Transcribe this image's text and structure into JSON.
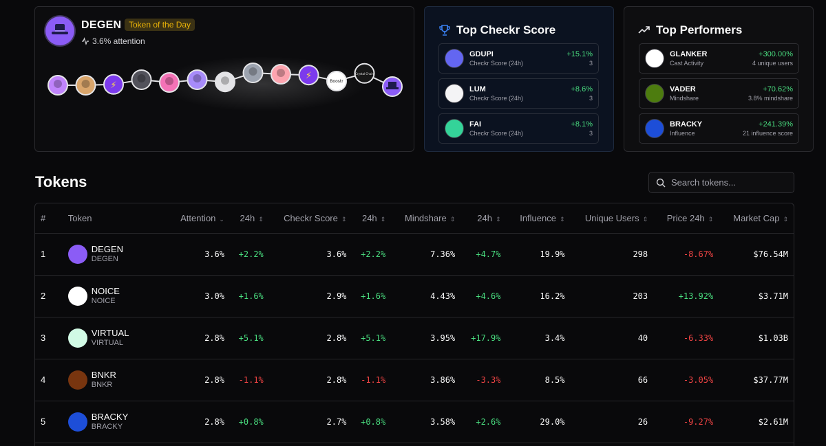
{
  "featured": {
    "name": "DEGEN",
    "badge": "Token of the Day",
    "attention": "3.6% attention",
    "chain_avatars": [
      {
        "label": "",
        "kind": "photo",
        "color": "#c084fc",
        "level": 0.35
      },
      {
        "label": "",
        "kind": "photo",
        "color": "#d9a56b",
        "level": 0.35
      },
      {
        "label": "⚡",
        "kind": "bolt",
        "color": "#7c3aed",
        "level": 0.38
      },
      {
        "label": "",
        "kind": "photo",
        "color": "#52525b",
        "level": 0.55
      },
      {
        "label": "",
        "kind": "photo",
        "color": "#f472b6",
        "level": 0.45
      },
      {
        "label": "",
        "kind": "photo",
        "color": "#a78bfa",
        "level": 0.55
      },
      {
        "label": "",
        "kind": "photo",
        "color": "#e4e4e7",
        "level": 0.47
      },
      {
        "label": "",
        "kind": "photo",
        "color": "#9ca3af",
        "level": 0.8
      },
      {
        "label": "",
        "kind": "photo",
        "color": "#fda4af",
        "level": 0.75
      },
      {
        "label": "⚡",
        "kind": "bolt",
        "color": "#7c3aed",
        "level": 0.72
      },
      {
        "label": "Boostr",
        "kind": "text",
        "color": "#ffffff",
        "level": 0.5
      },
      {
        "label": "Crystal Chain",
        "kind": "text",
        "color": "#171717",
        "level": 0.78
      },
      {
        "label": "",
        "kind": "degen",
        "color": "#8b5cf6",
        "level": 0.3
      }
    ]
  },
  "top_checkr": {
    "title": "Top Checkr Score",
    "items": [
      {
        "name": "GDUPI",
        "sub": "Checkr Score (24h)",
        "change": "+15.1%",
        "meta": "3",
        "color": "#6366f1"
      },
      {
        "name": "LUM",
        "sub": "Checkr Score (24h)",
        "change": "+8.6%",
        "meta": "3",
        "color": "#f4f4f5"
      },
      {
        "name": "FAI",
        "sub": "Checkr Score (24h)",
        "change": "+8.1%",
        "meta": "3",
        "color": "#34d399"
      }
    ]
  },
  "top_performers": {
    "title": "Top Performers",
    "items": [
      {
        "name": "GLANKER",
        "sub": "Cast Activity",
        "change": "+300.00%",
        "meta": "4 unique users",
        "color": "#ffffff"
      },
      {
        "name": "VADER",
        "sub": "Mindshare",
        "change": "+70.62%",
        "meta": "3.8% mindshare",
        "color": "#4d7c0f"
      },
      {
        "name": "BRACKY",
        "sub": "Influence",
        "change": "+241.39%",
        "meta": "21 influence score",
        "color": "#1d4ed8"
      }
    ]
  },
  "tokens_section": {
    "title": "Tokens",
    "search_placeholder": "Search tokens..."
  },
  "table": {
    "columns": [
      "#",
      "Token",
      "Attention",
      "24h",
      "Checkr Score",
      "24h",
      "Mindshare",
      "24h",
      "Influence",
      "Unique Users",
      "Price 24h",
      "Market Cap"
    ],
    "rows": [
      {
        "rank": "1",
        "name": "DEGEN",
        "symbol": "DEGEN",
        "logo_color": "#8b5cf6",
        "attention": "3.6%",
        "attention_24h": "+2.2%",
        "checkr": "3.6%",
        "checkr_24h": "+2.2%",
        "mindshare": "7.36%",
        "mindshare_24h": "+4.7%",
        "influence": "19.9%",
        "users": "298",
        "price_24h": "-8.67%",
        "market_cap": "$76.54M"
      },
      {
        "rank": "2",
        "name": "NOICE",
        "symbol": "NOICE",
        "logo_color": "#ffffff",
        "attention": "3.0%",
        "attention_24h": "+1.6%",
        "checkr": "2.9%",
        "checkr_24h": "+1.6%",
        "mindshare": "4.43%",
        "mindshare_24h": "+4.6%",
        "influence": "16.2%",
        "users": "203",
        "price_24h": "+13.92%",
        "market_cap": "$3.71M"
      },
      {
        "rank": "3",
        "name": "VIRTUAL",
        "symbol": "VIRTUAL",
        "logo_color": "#d1fae5",
        "attention": "2.8%",
        "attention_24h": "+5.1%",
        "checkr": "2.8%",
        "checkr_24h": "+5.1%",
        "mindshare": "3.95%",
        "mindshare_24h": "+17.9%",
        "influence": "3.4%",
        "users": "40",
        "price_24h": "-6.33%",
        "market_cap": "$1.03B"
      },
      {
        "rank": "4",
        "name": "BNKR",
        "symbol": "BNKR",
        "logo_color": "#78350f",
        "attention": "2.8%",
        "attention_24h": "-1.1%",
        "checkr": "2.8%",
        "checkr_24h": "-1.1%",
        "mindshare": "3.86%",
        "mindshare_24h": "-3.3%",
        "influence": "8.5%",
        "users": "66",
        "price_24h": "-3.05%",
        "market_cap": "$37.77M"
      },
      {
        "rank": "5",
        "name": "BRACKY",
        "symbol": "BRACKY",
        "logo_color": "#1d4ed8",
        "attention": "2.8%",
        "attention_24h": "+0.8%",
        "checkr": "2.7%",
        "checkr_24h": "+0.8%",
        "mindshare": "3.58%",
        "mindshare_24h": "+2.6%",
        "influence": "29.0%",
        "users": "26",
        "price_24h": "-9.27%",
        "market_cap": "$2.61M"
      }
    ]
  }
}
